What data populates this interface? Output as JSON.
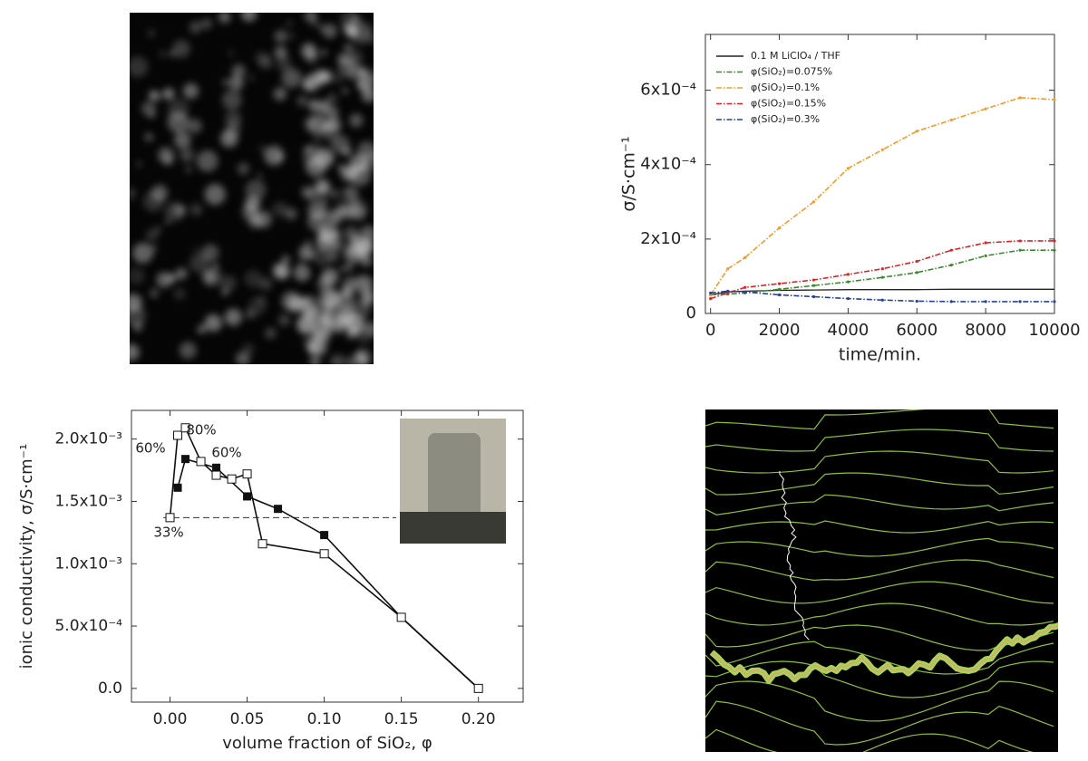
{
  "chart_data": [
    {
      "type": "line",
      "ylabel": "σ/S·cm⁻¹",
      "xlabel": "time/min.",
      "x": [
        0,
        500,
        1000,
        2000,
        3000,
        4000,
        5000,
        6000,
        7000,
        8000,
        9000,
        10000
      ],
      "series": [
        {
          "name": "0.1 M LiClO₄ / THF",
          "color": "#222222",
          "style": "solid",
          "values": [
            5e-05,
            5.8e-05,
            6e-05,
            6.2e-05,
            6.3e-05,
            6.4e-05,
            6.4e-05,
            6.4e-05,
            6.5e-05,
            6.5e-05,
            6.5e-05,
            6.5e-05
          ]
        },
        {
          "name": "φ(SiO₂)=0.075%",
          "color": "#3c8a2e",
          "style": "dashdot",
          "values": [
            5e-05,
            5.2e-05,
            5.5e-05,
            6.5e-05,
            7.5e-05,
            8.5e-05,
            9.7e-05,
            0.00011,
            0.00013,
            0.000155,
            0.00017,
            0.00017
          ]
        },
        {
          "name": "φ(SiO₂)=0.1%",
          "color": "#f39a2b",
          "style": "dashdot",
          "values": [
            5e-05,
            0.00012,
            0.00015,
            0.00023,
            0.0003,
            0.00039,
            0.00044,
            0.00049,
            0.00052,
            0.00055,
            0.00058,
            0.000575
          ]
        },
        {
          "name": "φ(SiO₂)=0.15%",
          "color": "#d7262a",
          "style": "dashdot",
          "values": [
            4e-05,
            5.5e-05,
            7e-05,
            8e-05,
            9e-05,
            0.000105,
            0.00012,
            0.00014,
            0.00017,
            0.00019,
            0.000195,
            0.000195
          ]
        },
        {
          "name": "φ(SiO₂)=0.3%",
          "color": "#27409c",
          "style": "dashdot",
          "values": [
            5.5e-05,
            6e-05,
            5.8e-05,
            5e-05,
            4.5e-05,
            4e-05,
            3.6e-05,
            3.3e-05,
            3.2e-05,
            3.2e-05,
            3.2e-05,
            3.2e-05
          ]
        }
      ],
      "xlim": [
        -150,
        10000
      ],
      "ylim": [
        0,
        0.00075
      ],
      "xticks": [
        0,
        2000,
        4000,
        6000,
        8000,
        10000
      ],
      "yticks": [
        0,
        {
          "value": 0.0002,
          "label": "2x10⁻⁴"
        },
        {
          "value": 0.0004,
          "label": "4x10⁻⁴"
        },
        {
          "value": 0.0006,
          "label": "6x10⁻⁴"
        }
      ],
      "legend": "upper left"
    },
    {
      "type": "line",
      "ylabel": "ionic conductivity, σ/S·cm⁻¹",
      "xlabel": "volume fraction of SiO₂, φ",
      "series": [
        {
          "color": "#111111",
          "marker": "square-filled",
          "x": [
            0.005,
            0.01,
            0.03,
            0.05,
            0.07,
            0.1,
            0.15,
            0.2
          ],
          "values": [
            0.00161,
            0.00184,
            0.00177,
            0.00154,
            0.00144,
            0.00123,
            0.00057,
            0
          ]
        },
        {
          "color": "#111111",
          "marker": "square-open",
          "x": [
            0,
            0.005,
            0.01,
            0.02,
            0.03,
            0.04,
            0.05,
            0.06,
            0.1,
            0.15,
            0.2
          ],
          "values": [
            0.00137,
            0.00203,
            0.00209,
            0.00182,
            0.00171,
            0.00168,
            0.00172,
            0.00116,
            0.00108,
            0.00057,
            0
          ]
        }
      ],
      "reference_line": 0.00137,
      "annotations": [
        "80%",
        "60%",
        "60%",
        "33%"
      ],
      "xlim": [
        -0.025,
        0.229
      ],
      "ylim": [
        -0.00011,
        0.00223
      ],
      "xticks": [
        {
          "value": 0,
          "label": "0.00"
        },
        {
          "value": 0.05,
          "label": "0.05"
        },
        {
          "value": 0.1,
          "label": "0.10"
        },
        {
          "value": 0.15,
          "label": "0.15"
        },
        {
          "value": 0.2,
          "label": "0.20"
        }
      ],
      "yticks": [
        {
          "value": 0,
          "label": "0.0"
        },
        {
          "value": 0.0005,
          "label": "5.0x10⁻⁴"
        },
        {
          "value": 0.001,
          "label": "1.0x10⁻³"
        },
        {
          "value": 0.0015,
          "label": "1.5x10⁻³"
        },
        {
          "value": 0.002,
          "label": "2.0x10⁻³"
        }
      ]
    }
  ]
}
